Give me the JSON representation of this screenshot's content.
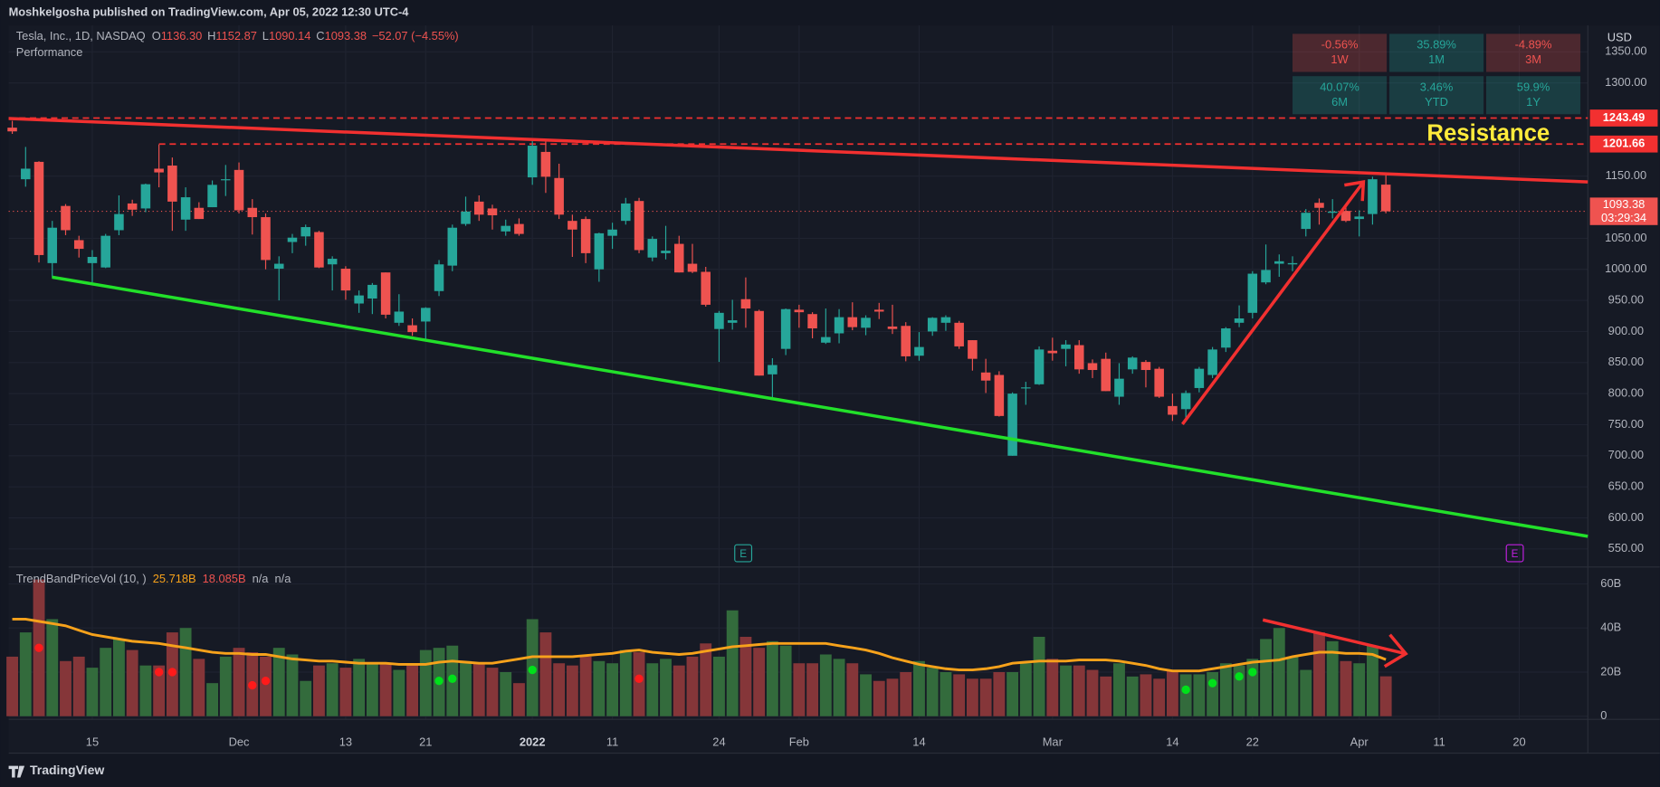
{
  "header": {
    "publisher": "Moshkelgosha published on TradingView.com, Apr 05, 2022 12:30 UTC-4"
  },
  "chart_data": {
    "type": "candlestick",
    "title": "Tesla, Inc., 1D, NASDAQ",
    "legend_items": [
      {
        "key": "O",
        "text": "1136.30"
      },
      {
        "key": "H",
        "text": "1152.87"
      },
      {
        "key": "L",
        "text": "1090.14"
      },
      {
        "key": "C",
        "text": "1093.38"
      }
    ],
    "change": "−52.07 (−4.55%)",
    "performance_label": "Performance",
    "performance": [
      {
        "value": "-0.56%",
        "period": "1W",
        "color": "#ef5350"
      },
      {
        "value": "35.89%",
        "period": "1M",
        "color": "#26a69a"
      },
      {
        "value": "-4.89%",
        "period": "3M",
        "color": "#ef5350"
      },
      {
        "value": "40.07%",
        "period": "6M",
        "color": "#26a69a"
      },
      {
        "value": "3.46%",
        "period": "YTD",
        "color": "#26a69a"
      },
      {
        "value": "59.9%",
        "period": "1Y",
        "color": "#26a69a"
      }
    ],
    "categories": [
      null,
      null,
      null,
      null,
      null,
      null,
      "15",
      null,
      null,
      null,
      null,
      null,
      null,
      null,
      null,
      null,
      null,
      "Dec",
      null,
      null,
      null,
      null,
      null,
      null,
      null,
      "13",
      null,
      null,
      null,
      null,
      null,
      "21",
      null,
      null,
      null,
      null,
      null,
      null,
      null,
      "2022",
      null,
      null,
      null,
      null,
      null,
      "11",
      null,
      null,
      null,
      null,
      null,
      null,
      null,
      "24",
      null,
      null,
      null,
      null,
      null,
      "Feb",
      null,
      null,
      null,
      null,
      null,
      null,
      null,
      null,
      "14",
      null,
      null,
      null,
      null,
      null,
      null,
      null,
      null,
      null,
      "Mar",
      null,
      null,
      null,
      null,
      null,
      null,
      null,
      null,
      "14",
      null,
      null,
      null,
      null,
      null,
      "22",
      null,
      null,
      null,
      null,
      null,
      null,
      null,
      "Apr",
      null,
      null,
      null,
      null,
      null,
      "11",
      null,
      null,
      null,
      null,
      null,
      "20"
    ],
    "open": [
      1228,
      1145,
      1173,
      1010,
      1102,
      1047,
      1010,
      1003,
      1063,
      1106,
      1098,
      1162,
      1167,
      1080,
      1099,
      1100,
      1144,
      1160,
      1099,
      1084,
      1001,
      1044,
      1053,
      1060,
      1008,
      1001,
      945,
      953,
      995,
      914,
      910,
      916,
      965,
      1006,
      1073,
      1109,
      1098,
      1061,
      1073,
      1148,
      1189,
      1147,
      1078,
      1081,
      1000,
      1054,
      1078,
      1110,
      1019,
      1026,
      1041,
      1009,
      996,
      904,
      914,
      952,
      933,
      831,
      872,
      935,
      928,
      882,
      897,
      923,
      906,
      935,
      908,
      909,
      861,
      900,
      914,
      914,
      886,
      834,
      830,
      700,
      809,
      815,
      869,
      872,
      878,
      849,
      856,
      795,
      839,
      851,
      840,
      780,
      775,
      809,
      830,
      874,
      914,
      930,
      979,
      1009,
      1008,
      1065,
      1107,
      1091,
      1094,
      1081,
      1089,
      1136.3,
      null,
      null,
      null,
      null,
      null,
      null,
      null,
      null,
      null,
      null
    ],
    "high": [
      1239,
      1197,
      1174,
      1078,
      1105,
      1054,
      1031,
      1057,
      1119,
      1112,
      1138,
      1201,
      1180,
      1132,
      1108,
      1143,
      1168,
      1172,
      1113,
      1090,
      1021,
      1057,
      1072,
      1062,
      1021,
      1005,
      966,
      978,
      995,
      960,
      921,
      939,
      1015,
      1072,
      1117,
      1119,
      1104,
      1080,
      1082,
      1208,
      1208,
      1170,
      1088,
      1085,
      1059,
      1075,
      1115,
      1115,
      1053,
      1070,
      1054,
      1041,
      1004,
      933,
      951,
      987,
      935,
      857,
      937,
      943,
      931,
      937,
      936,
      947,
      926,
      946,
      943,
      915,
      899,
      923,
      926,
      917,
      886,
      856,
      836,
      802,
      819,
      876,
      890,
      886,
      886,
      855,
      866,
      849,
      860,
      854,
      843,
      800,
      805,
      843,
      875,
      907,
      942,
      997,
      1040,
      1024,
      1021,
      1097,
      1114,
      1113,
      1104,
      1095,
      1149,
      1152.87,
      null,
      null,
      null,
      null,
      null,
      null,
      null,
      null,
      null,
      null
    ],
    "low": [
      1218,
      1133,
      1011,
      987,
      1055,
      1019,
      979,
      1002,
      1055,
      1086,
      1092,
      1132,
      1062,
      1062,
      1081,
      1100,
      1118,
      1090,
      1056,
      1000,
      950,
      1026,
      1038,
      1002,
      966,
      951,
      930,
      928,
      921,
      909,
      893,
      886,
      957,
      997,
      1070,
      1078,
      1064,
      1054,
      1054,
      1136,
      1123,
      1081,
      1020,
      1010,
      980,
      1033,
      1072,
      1026,
      1013,
      1016,
      995,
      994,
      940,
      851,
      903,
      906,
      829,
      792,
      862,
      906,
      889,
      880,
      881,
      902,
      894,
      920,
      896,
      852,
      853,
      893,
      901,
      872,
      837,
      801,
      763,
      700,
      782,
      814,
      853,
      844,
      832,
      825,
      804,
      782,
      832,
      810,
      793,
      756,
      756,
      802,
      825,
      867,
      907,
      921,
      976,
      988,
      997,
      1053,
      1072,
      1082,
      1076,
      1053,
      1072,
      1090.14,
      null,
      null,
      null,
      null,
      null,
      null,
      null,
      null,
      null,
      null
    ],
    "close": [
      1222,
      1162,
      1023,
      1067,
      1063,
      1033,
      1020,
      1054,
      1089,
      1096,
      1137,
      1156,
      1109,
      1116,
      1081,
      1136,
      1145,
      1095,
      1084,
      1015,
      1009,
      1051,
      1068,
      1003,
      1017,
      966,
      958,
      975,
      927,
      932,
      899,
      938,
      1008,
      1067,
      1093,
      1088,
      1087,
      1070,
      1057,
      1199,
      1149,
      1088,
      1064,
      1026,
      1058,
      1064,
      1106,
      1031,
      1049,
      1030,
      995,
      996,
      943,
      930,
      918,
      937,
      829,
      846,
      936,
      931,
      905,
      891,
      923,
      907,
      922,
      932,
      904,
      860,
      875,
      922,
      923,
      876,
      856,
      821,
      764,
      800,
      810,
      871,
      865,
      879,
      839,
      838,
      804,
      824,
      858,
      838,
      795,
      766,
      801,
      840,
      871,
      905,
      921,
      993,
      999,
      1013,
      1010,
      1091,
      1099,
      1093,
      1078,
      1085,
      1145,
      1093.38,
      null,
      null,
      null,
      null,
      null,
      null,
      null,
      null,
      null,
      null
    ],
    "up_color": "#26a69a",
    "down_color": "#ef5350",
    "ylim": [
      522.7,
      1392.6
    ],
    "y_unit": "USD",
    "yticks": [
      {
        "value": 550,
        "label": "550.00"
      },
      {
        "value": 600,
        "label": "600.00"
      },
      {
        "value": 650,
        "label": "650.00"
      },
      {
        "value": 700,
        "label": "700.00"
      },
      {
        "value": 750,
        "label": "750.00"
      },
      {
        "value": 800,
        "label": "800.00"
      },
      {
        "value": 850,
        "label": "850.00"
      },
      {
        "value": 900,
        "label": "900.00"
      },
      {
        "value": 950,
        "label": "950.00"
      },
      {
        "value": 1000,
        "label": "1000.00"
      },
      {
        "value": 1050,
        "label": "1050.00"
      },
      {
        "value": 1150,
        "label": "1150.00"
      },
      {
        "value": 1300,
        "label": "1300.00"
      },
      {
        "value": 1350,
        "label": "1350.00"
      }
    ],
    "levels": [
      {
        "value": 1243.49,
        "label": "1243.49"
      },
      {
        "value": 1201.66,
        "label": "1201.66"
      }
    ],
    "last_price": {
      "value": 1093.38,
      "label": "1093.38",
      "countdown": "03:29:34"
    },
    "annotation": "Resistance",
    "grid": true,
    "volume": {
      "title": "TrendBandPriceVol (10, )",
      "legend": [
        {
          "text": "25.718B",
          "color": "#f7a21b"
        },
        {
          "text": "18.085B",
          "color": "#ef5350"
        },
        {
          "text": "n/a",
          "color": "#b2b5be"
        },
        {
          "text": "n/a",
          "color": "#b2b5be"
        }
      ],
      "values": [
        27,
        38,
        62,
        44,
        25,
        27,
        22,
        31,
        35,
        30,
        23,
        23,
        38,
        40,
        26,
        15,
        27,
        31,
        29,
        27,
        31,
        28,
        16,
        23,
        24,
        22,
        26,
        24,
        24,
        21,
        24,
        30,
        31,
        32,
        25,
        24,
        22,
        20,
        15,
        44,
        38,
        24,
        23,
        27,
        25,
        24,
        30,
        29,
        24,
        26,
        23,
        27,
        33,
        27,
        48,
        36,
        31,
        34,
        32,
        24,
        24,
        28,
        26,
        24,
        19,
        16,
        17,
        20,
        25,
        22,
        20,
        19,
        17,
        17,
        20,
        20,
        24,
        36,
        26,
        23,
        23,
        21,
        18,
        24,
        18,
        19,
        17,
        21,
        19,
        19,
        20,
        24,
        23,
        26,
        35,
        40,
        27,
        21,
        38,
        34,
        25,
        24,
        32,
        18.085,
        null,
        null,
        null,
        null,
        null,
        null,
        null,
        null,
        null,
        null
      ],
      "ma": [
        44,
        44,
        43,
        42,
        41,
        39,
        37,
        36,
        35,
        34,
        33.5,
        33,
        32,
        31,
        30,
        29,
        28.5,
        28.5,
        28,
        28,
        27,
        26,
        25.5,
        25,
        25,
        24.5,
        24,
        24,
        24,
        23.5,
        23.5,
        23.5,
        24.5,
        25,
        24.5,
        24,
        24,
        25,
        26,
        27,
        27,
        27,
        27,
        27.5,
        28,
        28.5,
        29.5,
        30,
        29,
        28.5,
        28,
        28.5,
        29.5,
        30.5,
        31.5,
        32,
        32.5,
        33,
        33,
        33,
        33,
        33,
        32,
        31,
        30,
        28.5,
        26.5,
        25,
        23.5,
        22.5,
        21.5,
        21,
        21,
        21.5,
        22.5,
        24,
        24.5,
        25,
        25,
        25,
        25.5,
        25.5,
        25.5,
        25,
        24,
        23,
        21.5,
        20.5,
        20.5,
        20.5,
        21.5,
        22.5,
        23.5,
        24.5,
        25,
        25.5,
        27,
        28,
        29,
        29,
        28.5,
        28.5,
        28,
        25.718,
        null,
        null,
        null,
        null,
        null,
        null,
        null,
        null,
        null,
        null
      ],
      "sell_dots": [
        null,
        null,
        31,
        null,
        null,
        null,
        null,
        null,
        null,
        null,
        null,
        20,
        20,
        null,
        null,
        null,
        null,
        null,
        14,
        16,
        null,
        null,
        null,
        null,
        null,
        null,
        null,
        null,
        null,
        null,
        null,
        null,
        null,
        null,
        null,
        null,
        null,
        null,
        null,
        null,
        null,
        null,
        null,
        null,
        null,
        null,
        null,
        17,
        null,
        null,
        null,
        null,
        null,
        null,
        null,
        null,
        null,
        null,
        null,
        null,
        null,
        null,
        null,
        null,
        null,
        null,
        null,
        null,
        null,
        null,
        null,
        null,
        null,
        null,
        null,
        null,
        null,
        null,
        null,
        null,
        null,
        null,
        null,
        null,
        null,
        null,
        null,
        null,
        null,
        null,
        null,
        null,
        null,
        null,
        null,
        null,
        null,
        null,
        null,
        null,
        null,
        null,
        null,
        null,
        null,
        null,
        null,
        null,
        null,
        null,
        null,
        null,
        null,
        null
      ],
      "buy_dots": [
        null,
        null,
        null,
        null,
        null,
        null,
        null,
        null,
        null,
        null,
        null,
        null,
        null,
        null,
        null,
        null,
        null,
        null,
        null,
        null,
        null,
        null,
        null,
        null,
        null,
        null,
        null,
        null,
        null,
        null,
        null,
        null,
        16,
        17,
        null,
        null,
        null,
        null,
        null,
        21,
        null,
        null,
        null,
        null,
        null,
        null,
        null,
        null,
        null,
        null,
        null,
        null,
        null,
        null,
        null,
        null,
        null,
        null,
        null,
        null,
        null,
        null,
        null,
        null,
        null,
        null,
        null,
        null,
        null,
        null,
        null,
        null,
        null,
        null,
        null,
        null,
        null,
        null,
        null,
        null,
        null,
        null,
        null,
        null,
        null,
        null,
        null,
        null,
        12,
        null,
        15,
        null,
        18,
        20,
        null,
        null,
        null,
        null,
        null,
        null,
        null,
        null,
        null,
        null,
        null,
        null,
        null,
        null,
        null,
        null,
        null,
        null,
        null,
        null
      ],
      "up_color": "#336b3c",
      "down_color": "#853639",
      "ma_color": "#f7a21b",
      "sell_color": "#ff1a1a",
      "buy_color": "#00e01a",
      "ylim": [
        -1.4,
        66.7
      ],
      "yticks": [
        {
          "value": 60,
          "label": "60B"
        },
        {
          "value": 40,
          "label": "40B"
        },
        {
          "value": 20,
          "label": "20B"
        },
        0
      ]
    }
  },
  "footer": {
    "brand": "TradingView"
  }
}
